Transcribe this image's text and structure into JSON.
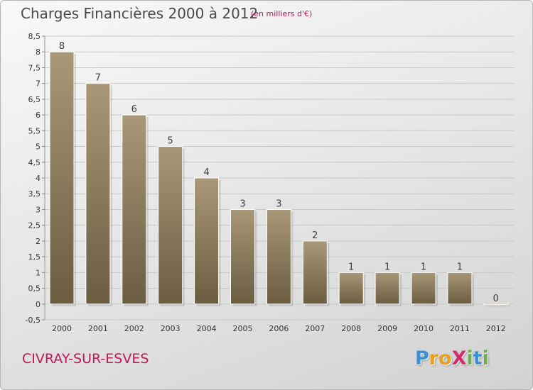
{
  "title": "Charges Financières 2000 à 2012",
  "subtitle": "(en milliers d'€)",
  "place": "CIVRAY-SUR-ESVES",
  "logo": {
    "text": "ProXiti",
    "letters": [
      {
        "ch": "P",
        "color": "#3b8fd4"
      },
      {
        "ch": "r",
        "color": "#e8a020"
      },
      {
        "ch": "o",
        "color": "#e8a020"
      },
      {
        "ch": "X",
        "color": "#d42a6a"
      },
      {
        "ch": "i",
        "color": "#6ab04c"
      },
      {
        "ch": "t",
        "color": "#3b8fd4"
      },
      {
        "ch": "i",
        "color": "#6ab04c"
      }
    ]
  },
  "colors": {
    "bar_top": "#a89878",
    "bar_bottom": "#6c5c40",
    "grid": "#c8c8c8",
    "axis_text": "#333333",
    "title": "#4a4a4a",
    "accent": "#c0185a"
  },
  "chart_data": {
    "type": "bar",
    "categories": [
      "2000",
      "2001",
      "2002",
      "2003",
      "2004",
      "2005",
      "2006",
      "2007",
      "2008",
      "2009",
      "2010",
      "2011",
      "2012"
    ],
    "values": [
      8,
      7,
      6,
      5,
      4,
      3,
      3,
      2,
      1,
      1,
      1,
      1,
      0
    ],
    "data_labels": [
      "8",
      "7",
      "6",
      "5",
      "4",
      "3",
      "3",
      "2",
      "1",
      "1",
      "1",
      "1",
      "0"
    ],
    "yticks": [
      "-0,5",
      "0",
      "0,5",
      "1",
      "1,5",
      "2",
      "2,5",
      "3",
      "3,5",
      "4",
      "4,5",
      "5",
      "5,5",
      "6",
      "6,5",
      "7",
      "7,5",
      "8",
      "8,5"
    ],
    "ylim": [
      -0.5,
      8.5
    ],
    "grid": true,
    "xlabel": "",
    "ylabel": ""
  }
}
